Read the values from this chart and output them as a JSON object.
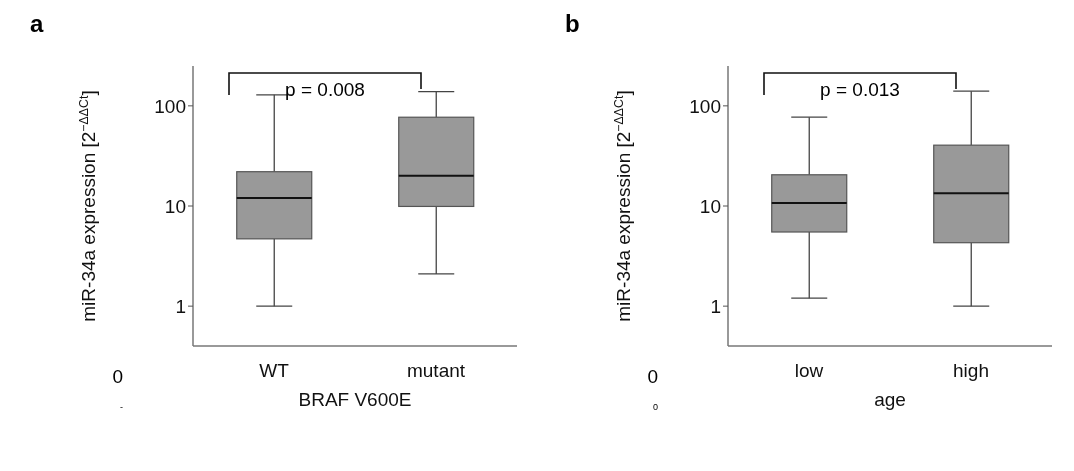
{
  "chart_data": [
    {
      "type": "box",
      "title": "a",
      "xlabel": "BRAF V600E",
      "ylabel": "miR-34a expression [2$^{−ΔΔCt}$]",
      "categories": [
        "WT",
        "mutant"
      ],
      "log": true,
      "ylim": [
        0.4,
        250
      ],
      "yticks": [
        1,
        10,
        100
      ],
      "annotations": [
        "p = 0.008",
        "0",
        "-"
      ],
      "series": [
        {
          "color": "#999999",
          "boxes": [
            {
              "low": 1,
              "q1": 4.7,
              "median": 12,
              "q3": 22,
              "high": 129
            },
            {
              "low": 2.1,
              "q1": 9.9,
              "median": 20,
              "q3": 77,
              "high": 139
            }
          ]
        }
      ]
    },
    {
      "type": "box",
      "title": "b",
      "xlabel": "age",
      "ylabel": "miR-34a expression [2$^{−ΔΔCt}$]",
      "categories": [
        "low",
        "high"
      ],
      "log": true,
      "ylim": [
        0.4,
        250
      ],
      "yticks": [
        1,
        10,
        100
      ],
      "annotations": [
        "p = 0.013",
        "0",
        "0"
      ],
      "series": [
        {
          "color": "#999999",
          "boxes": [
            {
              "low": 1.2,
              "q1": 5.5,
              "median": 10.7,
              "q3": 20.5,
              "high": 77
            },
            {
              "low": 1,
              "q1": 4.3,
              "median": 13.4,
              "q3": 40.5,
              "high": 140
            }
          ]
        }
      ]
    }
  ]
}
